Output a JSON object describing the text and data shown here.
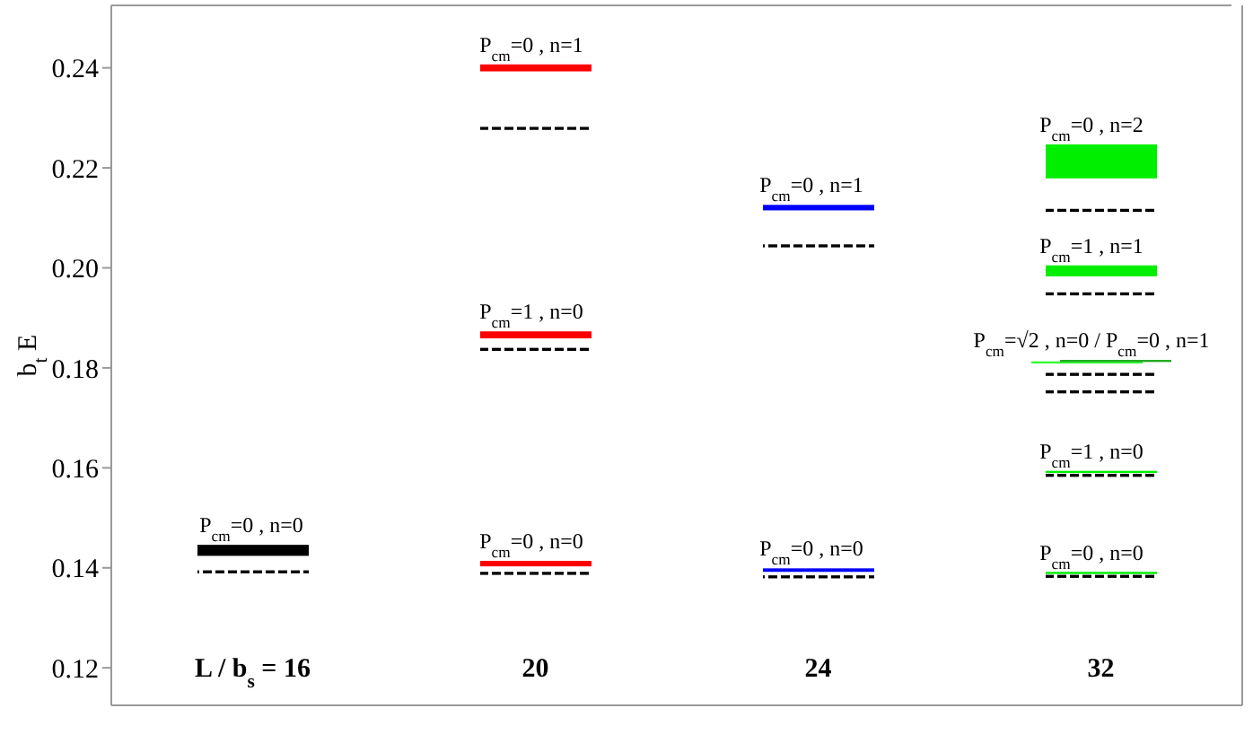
{
  "chart_data": {
    "type": "bar",
    "ylabel": "b$_{t}$ E",
    "categories": [
      "L / b$_{s}$ = 16",
      "20",
      "24",
      "32"
    ],
    "ylim": [
      0.1125,
      0.2525
    ],
    "yticks": [
      0.12,
      0.14,
      0.16,
      0.18,
      {
        "value": 0.2,
        "label": "0.20"
      },
      0.22,
      0.24
    ],
    "series": [
      {
        "colors": [
          "#000000",
          "#ff0000",
          "#0000ff",
          "#00ee00"
        ],
        "base": [
          0.1424,
          0.1403,
          0.1392,
          0.1388
        ],
        "values": [
          0.0022,
          0.0011,
          0.0007,
          0.0004
        ]
      },
      {
        "colors": [
          null,
          "#ff0000",
          "#0000ff",
          "#00ee00"
        ],
        "base": [
          null,
          0.1859,
          0.2115,
          0.159
        ],
        "values": [
          null,
          0.0014,
          0.0011,
          0.0004
        ]
      },
      {
        "colors": [
          null,
          "#ff0000",
          null,
          "#33ff33"
        ],
        "base": [
          null,
          0.2393,
          null,
          0.1809
        ],
        "values": [
          null,
          0.0014,
          null,
          0.0004
        ]
      },
      {
        "color": "#22aa22",
        "base": [
          null,
          null,
          null,
          0.1812
        ],
        "values": [
          null,
          null,
          null,
          0.0004
        ]
      },
      {
        "color": "#00ee00",
        "base": [
          null,
          null,
          null,
          0.1983
        ],
        "values": [
          null,
          null,
          null,
          0.0022
        ]
      },
      {
        "color": "#00ee00",
        "base": [
          null,
          null,
          null,
          0.2179
        ],
        "values": [
          null,
          null,
          null,
          0.0068
        ]
      },
      {
        "color": "#000000",
        "line_style": "dashed",
        "base": [
          0.1389,
          0.1386,
          0.1379,
          0.138
        ],
        "values": [
          0.0006,
          0.0006,
          0.0006,
          0.0006
        ]
      },
      {
        "color": "#000000",
        "line_style": "dashed",
        "base": [
          null,
          0.1834,
          0.2041,
          0.1582
        ],
        "values": [
          null,
          0.0006,
          0.0006,
          0.0006
        ]
      },
      {
        "color": "#000000",
        "line_style": "dashed",
        "base": [
          null,
          0.2276,
          null,
          0.1749
        ],
        "values": [
          null,
          0.0006,
          null,
          0.0006
        ]
      },
      {
        "color": "#000000",
        "line_style": "dashed",
        "base": [
          null,
          null,
          null,
          0.1784
        ],
        "values": [
          null,
          null,
          null,
          0.0006
        ]
      },
      {
        "color": "#000000",
        "line_style": "dashed",
        "base": [
          null,
          null,
          null,
          0.1945
        ],
        "values": [
          null,
          null,
          null,
          0.0006
        ]
      },
      {
        "color": "#000000",
        "line_style": "dashed",
        "base": [
          null,
          null,
          null,
          0.2112
        ],
        "values": [
          null,
          null,
          null,
          0.0006
        ]
      }
    ],
    "annotations": [
      {
        "text": "P$_{cm}$=0 , n=0",
        "x": "L / b$_{s}$ = 16",
        "y": 0.1446
      },
      {
        "text": "P$_{cm}$=0 , n=0",
        "x": "20",
        "y": 0.1414
      },
      {
        "text": "P$_{cm}$=1 , n=0",
        "x": "20",
        "y": 0.1873
      },
      {
        "text": "P$_{cm}$=0 , n=1",
        "x": "20",
        "y": 0.2407
      },
      {
        "text": "P$_{cm}$=0 , n=0",
        "x": "24",
        "y": 0.1399
      },
      {
        "text": "P$_{cm}$=0 , n=1",
        "x": "24",
        "y": 0.2126
      },
      {
        "text": "P$_{cm}$=0 , n=0",
        "x": "32",
        "y": 0.1391
      },
      {
        "text": "P$_{cm}$=1 , n=0",
        "x": "32",
        "y": 0.1594
      },
      {
        "text": "P$_{cm}$=√2 , n=0 / P$_{cm}$=0 , n=1",
        "x": "32",
        "y": 0.1816
      },
      {
        "text": "P$_{cm}$=1 , n=1",
        "x": "32",
        "y": 0.2005
      },
      {
        "text": "P$_{cm}$=0 , n=2",
        "x": "32",
        "y": 0.2247
      }
    ]
  }
}
